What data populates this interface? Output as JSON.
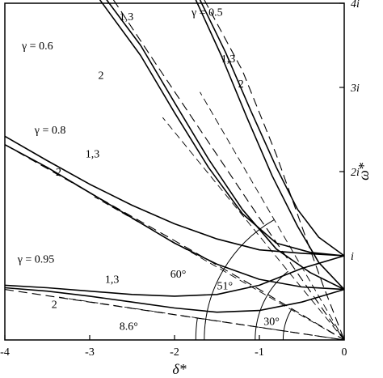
{
  "chart_data": {
    "type": "line",
    "title": "",
    "xlabel": "δ*",
    "ylabel": "ω*",
    "xlim": [
      -4,
      0
    ],
    "ylim": [
      0,
      4
    ],
    "grid": false,
    "x_ticks": [
      {
        "value": -4,
        "label": "-4"
      },
      {
        "value": -3,
        "label": "-3"
      },
      {
        "value": -2,
        "label": "-2"
      },
      {
        "value": -1,
        "label": "-1"
      },
      {
        "value": 0,
        "label": "0"
      }
    ],
    "y_ticks": [
      {
        "value": 1,
        "label": "i"
      },
      {
        "value": 2,
        "label": "2i"
      },
      {
        "value": 3,
        "label": "3i"
      },
      {
        "value": 4,
        "label": "4i"
      }
    ],
    "series": [
      {
        "group": "0.5",
        "curve": "1,3",
        "style": "solid",
        "points": [
          [
            -1.7,
            4.04
          ],
          [
            -1.4,
            3.42
          ],
          [
            -1.1,
            2.72
          ],
          [
            -0.8,
            2.05
          ],
          [
            -0.55,
            1.55
          ],
          [
            -0.3,
            1.22
          ],
          [
            0,
            1.0
          ]
        ]
      },
      {
        "group": "0.5",
        "curve": "1,3",
        "style": "solid",
        "points": [
          [
            -1.75,
            4.04
          ],
          [
            -1.45,
            3.38
          ],
          [
            -1.15,
            2.65
          ],
          [
            -0.85,
            1.95
          ],
          [
            -0.55,
            1.35
          ],
          [
            -0.3,
            0.92
          ],
          [
            0,
            0.6
          ]
        ]
      },
      {
        "group": "0.5",
        "curve": "2",
        "style": "dashed",
        "points": [
          [
            -1.65,
            4.04
          ],
          [
            -1.2,
            3.2
          ],
          [
            -0.8,
            2.2
          ],
          [
            -0.5,
            1.35
          ],
          [
            -0.25,
            0.65
          ],
          [
            0,
            0
          ]
        ]
      },
      {
        "group": "0.6",
        "curve": "1,3",
        "style": "solid",
        "points": [
          [
            -2.8,
            4.04
          ],
          [
            -2.4,
            3.5
          ],
          [
            -2.0,
            2.82
          ],
          [
            -1.6,
            2.15
          ],
          [
            -1.2,
            1.55
          ],
          [
            -0.8,
            1.08
          ],
          [
            -0.4,
            0.8
          ],
          [
            0,
            0.6
          ]
        ]
      },
      {
        "group": "0.6",
        "curve": "1,3",
        "style": "solid",
        "points": [
          [
            -2.88,
            4.04
          ],
          [
            -2.4,
            3.38
          ],
          [
            -2.0,
            2.7
          ],
          [
            -1.6,
            2.05
          ],
          [
            -1.2,
            1.5
          ],
          [
            -0.8,
            1.15
          ],
          [
            -0.4,
            1.04
          ],
          [
            0,
            1.0
          ]
        ]
      },
      {
        "group": "0.6",
        "curve": "2",
        "style": "dashed",
        "points": [
          [
            -2.72,
            4.04
          ],
          [
            -2.2,
            3.25
          ],
          [
            -1.6,
            2.35
          ],
          [
            -1.0,
            1.45
          ],
          [
            -0.5,
            0.72
          ],
          [
            0,
            0
          ]
        ]
      },
      {
        "group": "0.8",
        "curve": "1,3",
        "style": "solid",
        "points": [
          [
            -4,
            2.42
          ],
          [
            -3.5,
            2.13
          ],
          [
            -3.0,
            1.85
          ],
          [
            -2.5,
            1.6
          ],
          [
            -2.0,
            1.38
          ],
          [
            -1.5,
            1.2
          ],
          [
            -1.0,
            1.07
          ],
          [
            -0.5,
            1.03
          ],
          [
            0,
            1.0
          ]
        ]
      },
      {
        "group": "0.8",
        "curve": "1,3",
        "style": "solid",
        "points": [
          [
            -4,
            2.32
          ],
          [
            -3.5,
            2.05
          ],
          [
            -3.0,
            1.75
          ],
          [
            -2.5,
            1.45
          ],
          [
            -2.0,
            1.15
          ],
          [
            -1.5,
            0.9
          ],
          [
            -1.0,
            0.72
          ],
          [
            -0.5,
            0.63
          ],
          [
            0,
            0.6
          ]
        ]
      },
      {
        "group": "0.8",
        "curve": "2",
        "style": "dashed",
        "points": [
          [
            -4,
            2.32
          ],
          [
            -3.0,
            1.75
          ],
          [
            -2.0,
            1.18
          ],
          [
            -1.0,
            0.6
          ],
          [
            0,
            0
          ]
        ]
      },
      {
        "group": "0.95",
        "curve": "1,3",
        "style": "solid",
        "points": [
          [
            -4,
            0.65
          ],
          [
            -3.5,
            0.62
          ],
          [
            -3.0,
            0.58
          ],
          [
            -2.5,
            0.54
          ],
          [
            -2.0,
            0.52
          ],
          [
            -1.5,
            0.54
          ],
          [
            -1.0,
            0.65
          ],
          [
            -0.5,
            0.85
          ],
          [
            0,
            1.0
          ]
        ]
      },
      {
        "group": "0.95",
        "curve": "1,3",
        "style": "solid",
        "points": [
          [
            -4,
            0.62
          ],
          [
            -3.5,
            0.58
          ],
          [
            -3.0,
            0.52
          ],
          [
            -2.5,
            0.45
          ],
          [
            -2.0,
            0.38
          ],
          [
            -1.5,
            0.33
          ],
          [
            -1.0,
            0.35
          ],
          [
            -0.5,
            0.45
          ],
          [
            0,
            0.6
          ]
        ]
      },
      {
        "group": "0.95",
        "curve": "2",
        "style": "dashed",
        "points": [
          [
            -4,
            0.6
          ],
          [
            -3.0,
            0.45
          ],
          [
            -2.0,
            0.3
          ],
          [
            -1.0,
            0.15
          ],
          [
            0,
            0
          ]
        ]
      }
    ],
    "ref_lines": [
      {
        "angle_deg": 8.6,
        "style": "dashed"
      },
      {
        "angle_deg": 30,
        "style": "dashed"
      },
      {
        "angle_deg": 51,
        "style": "dashed"
      },
      {
        "angle_deg": 60,
        "style": "dashed"
      }
    ],
    "angle_arcs": [
      {
        "radius": 1.75,
        "angle_deg": 8.6
      },
      {
        "radius": 1.65,
        "angle_deg": 60
      },
      {
        "radius": 1.05,
        "angle_deg": 51
      },
      {
        "radius": 0.72,
        "angle_deg": 30
      }
    ],
    "annotations": [
      {
        "text": "γ = 0.5",
        "x": -1.8,
        "y": 3.85
      },
      {
        "text": "γ = 0.6",
        "x": -3.8,
        "y": 3.45
      },
      {
        "text": "γ = 0.8",
        "x": -3.65,
        "y": 2.45
      },
      {
        "text": "γ = 0.95",
        "x": -3.85,
        "y": 0.92
      },
      {
        "text": "1,3",
        "x": -2.65,
        "y": 3.8
      },
      {
        "text": "2",
        "x": -2.9,
        "y": 3.1
      },
      {
        "text": "1,3",
        "x": -1.45,
        "y": 3.3
      },
      {
        "text": "2",
        "x": -1.25,
        "y": 3.0
      },
      {
        "text": "1,3",
        "x": -3.05,
        "y": 2.17
      },
      {
        "text": "2",
        "x": -3.4,
        "y": 1.95
      },
      {
        "text": "1,3",
        "x": -2.82,
        "y": 0.68
      },
      {
        "text": "2",
        "x": -3.45,
        "y": 0.38
      },
      {
        "text": "60°",
        "x": -2.05,
        "y": 0.74
      },
      {
        "text": "51°",
        "x": -1.5,
        "y": 0.6
      },
      {
        "text": "30°",
        "x": -0.95,
        "y": 0.18
      },
      {
        "text": "8.6°",
        "x": -2.65,
        "y": 0.12
      }
    ]
  }
}
